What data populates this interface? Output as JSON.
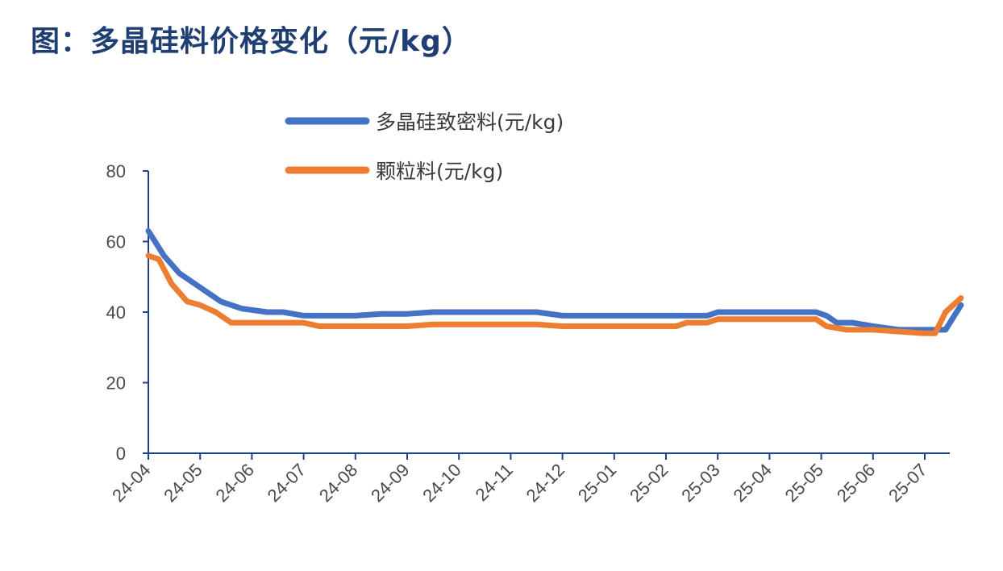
{
  "title": "图：多晶硅料价格变化（元/kg）",
  "chart_data": {
    "type": "line",
    "title": "图：多晶硅料价格变化（元/kg）",
    "xlabel": "",
    "ylabel": "",
    "ylim": [
      0,
      80
    ],
    "yticks": [
      0,
      20,
      40,
      60,
      80
    ],
    "xlim": [
      0,
      15.7
    ],
    "categories": [
      "24-04",
      "24-05",
      "24-06",
      "24-07",
      "24-08",
      "24-09",
      "24-10",
      "24-11",
      "24-12",
      "25-01",
      "25-02",
      "25-03",
      "25-04",
      "25-05",
      "25-06",
      "25-07"
    ],
    "grid": false,
    "legend_position": "top-center",
    "series": [
      {
        "name": "多晶硅致密料(元/kg)",
        "color": "#4472c4",
        "x": [
          0,
          0.3,
          0.6,
          1.0,
          1.4,
          1.8,
          2.3,
          2.6,
          3.0,
          4.0,
          4.5,
          5.0,
          5.5,
          6.0,
          7.0,
          7.5,
          8.0,
          9.0,
          10.0,
          10.8,
          11.0,
          12.0,
          12.9,
          13.1,
          13.3,
          13.6,
          14.0,
          14.5,
          15.0,
          15.4,
          15.7
        ],
        "y": [
          63,
          56,
          51,
          47,
          43,
          41,
          40,
          40,
          39,
          39,
          39.5,
          39.5,
          40,
          40,
          40,
          40,
          39,
          39,
          39,
          39,
          40,
          40,
          40,
          39,
          37,
          37,
          36,
          35,
          35,
          35,
          42
        ]
      },
      {
        "name": "颗粒料(元/kg)",
        "color": "#ed7d31",
        "x": [
          0,
          0.2,
          0.45,
          0.75,
          1.0,
          1.3,
          1.6,
          2.0,
          2.5,
          3.0,
          3.3,
          4.0,
          5.0,
          5.5,
          6.0,
          7.0,
          7.5,
          8.0,
          9.0,
          10.2,
          10.4,
          10.8,
          11.0,
          12.0,
          12.7,
          12.9,
          13.1,
          13.5,
          14.0,
          14.5,
          15.0,
          15.2,
          15.4,
          15.7
        ],
        "y": [
          56,
          55,
          48,
          43,
          42,
          40,
          37,
          37,
          37,
          37,
          36,
          36,
          36,
          36.5,
          36.5,
          36.5,
          36.5,
          36,
          36,
          36,
          37,
          37,
          38,
          38,
          38,
          38,
          36,
          35,
          35,
          34.5,
          34,
          34,
          40,
          44
        ]
      }
    ]
  }
}
